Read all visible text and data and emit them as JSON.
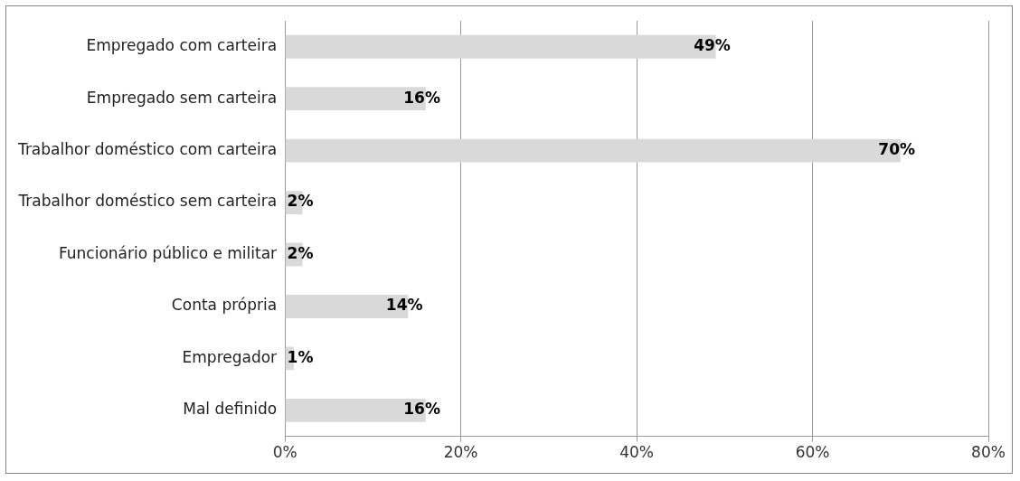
{
  "chart_data": {
    "type": "bar",
    "orientation": "horizontal",
    "categories": [
      "Empregado com carteira",
      "Empregado sem carteira",
      "Trabalhor doméstico com carteira",
      "Trabalhor doméstico sem carteira",
      "Funcionário público e militar",
      "Conta própria",
      "Empregador",
      "Mal definido"
    ],
    "values": [
      49,
      16,
      70,
      2,
      2,
      14,
      1,
      16
    ],
    "value_labels": [
      "49%",
      "16%",
      "70%",
      "2%",
      "2%",
      "14%",
      "1%",
      "16%"
    ],
    "color": "#d9d9d9",
    "xlim": [
      0,
      80
    ],
    "xticks": [
      {
        "value": 0,
        "label": "0%"
      },
      {
        "value": 20,
        "label": "20%"
      },
      {
        "value": 40,
        "label": "40%"
      },
      {
        "value": 60,
        "label": "60%"
      },
      {
        "value": 80,
        "label": "80%"
      }
    ],
    "grid": "x",
    "legend": false
  }
}
